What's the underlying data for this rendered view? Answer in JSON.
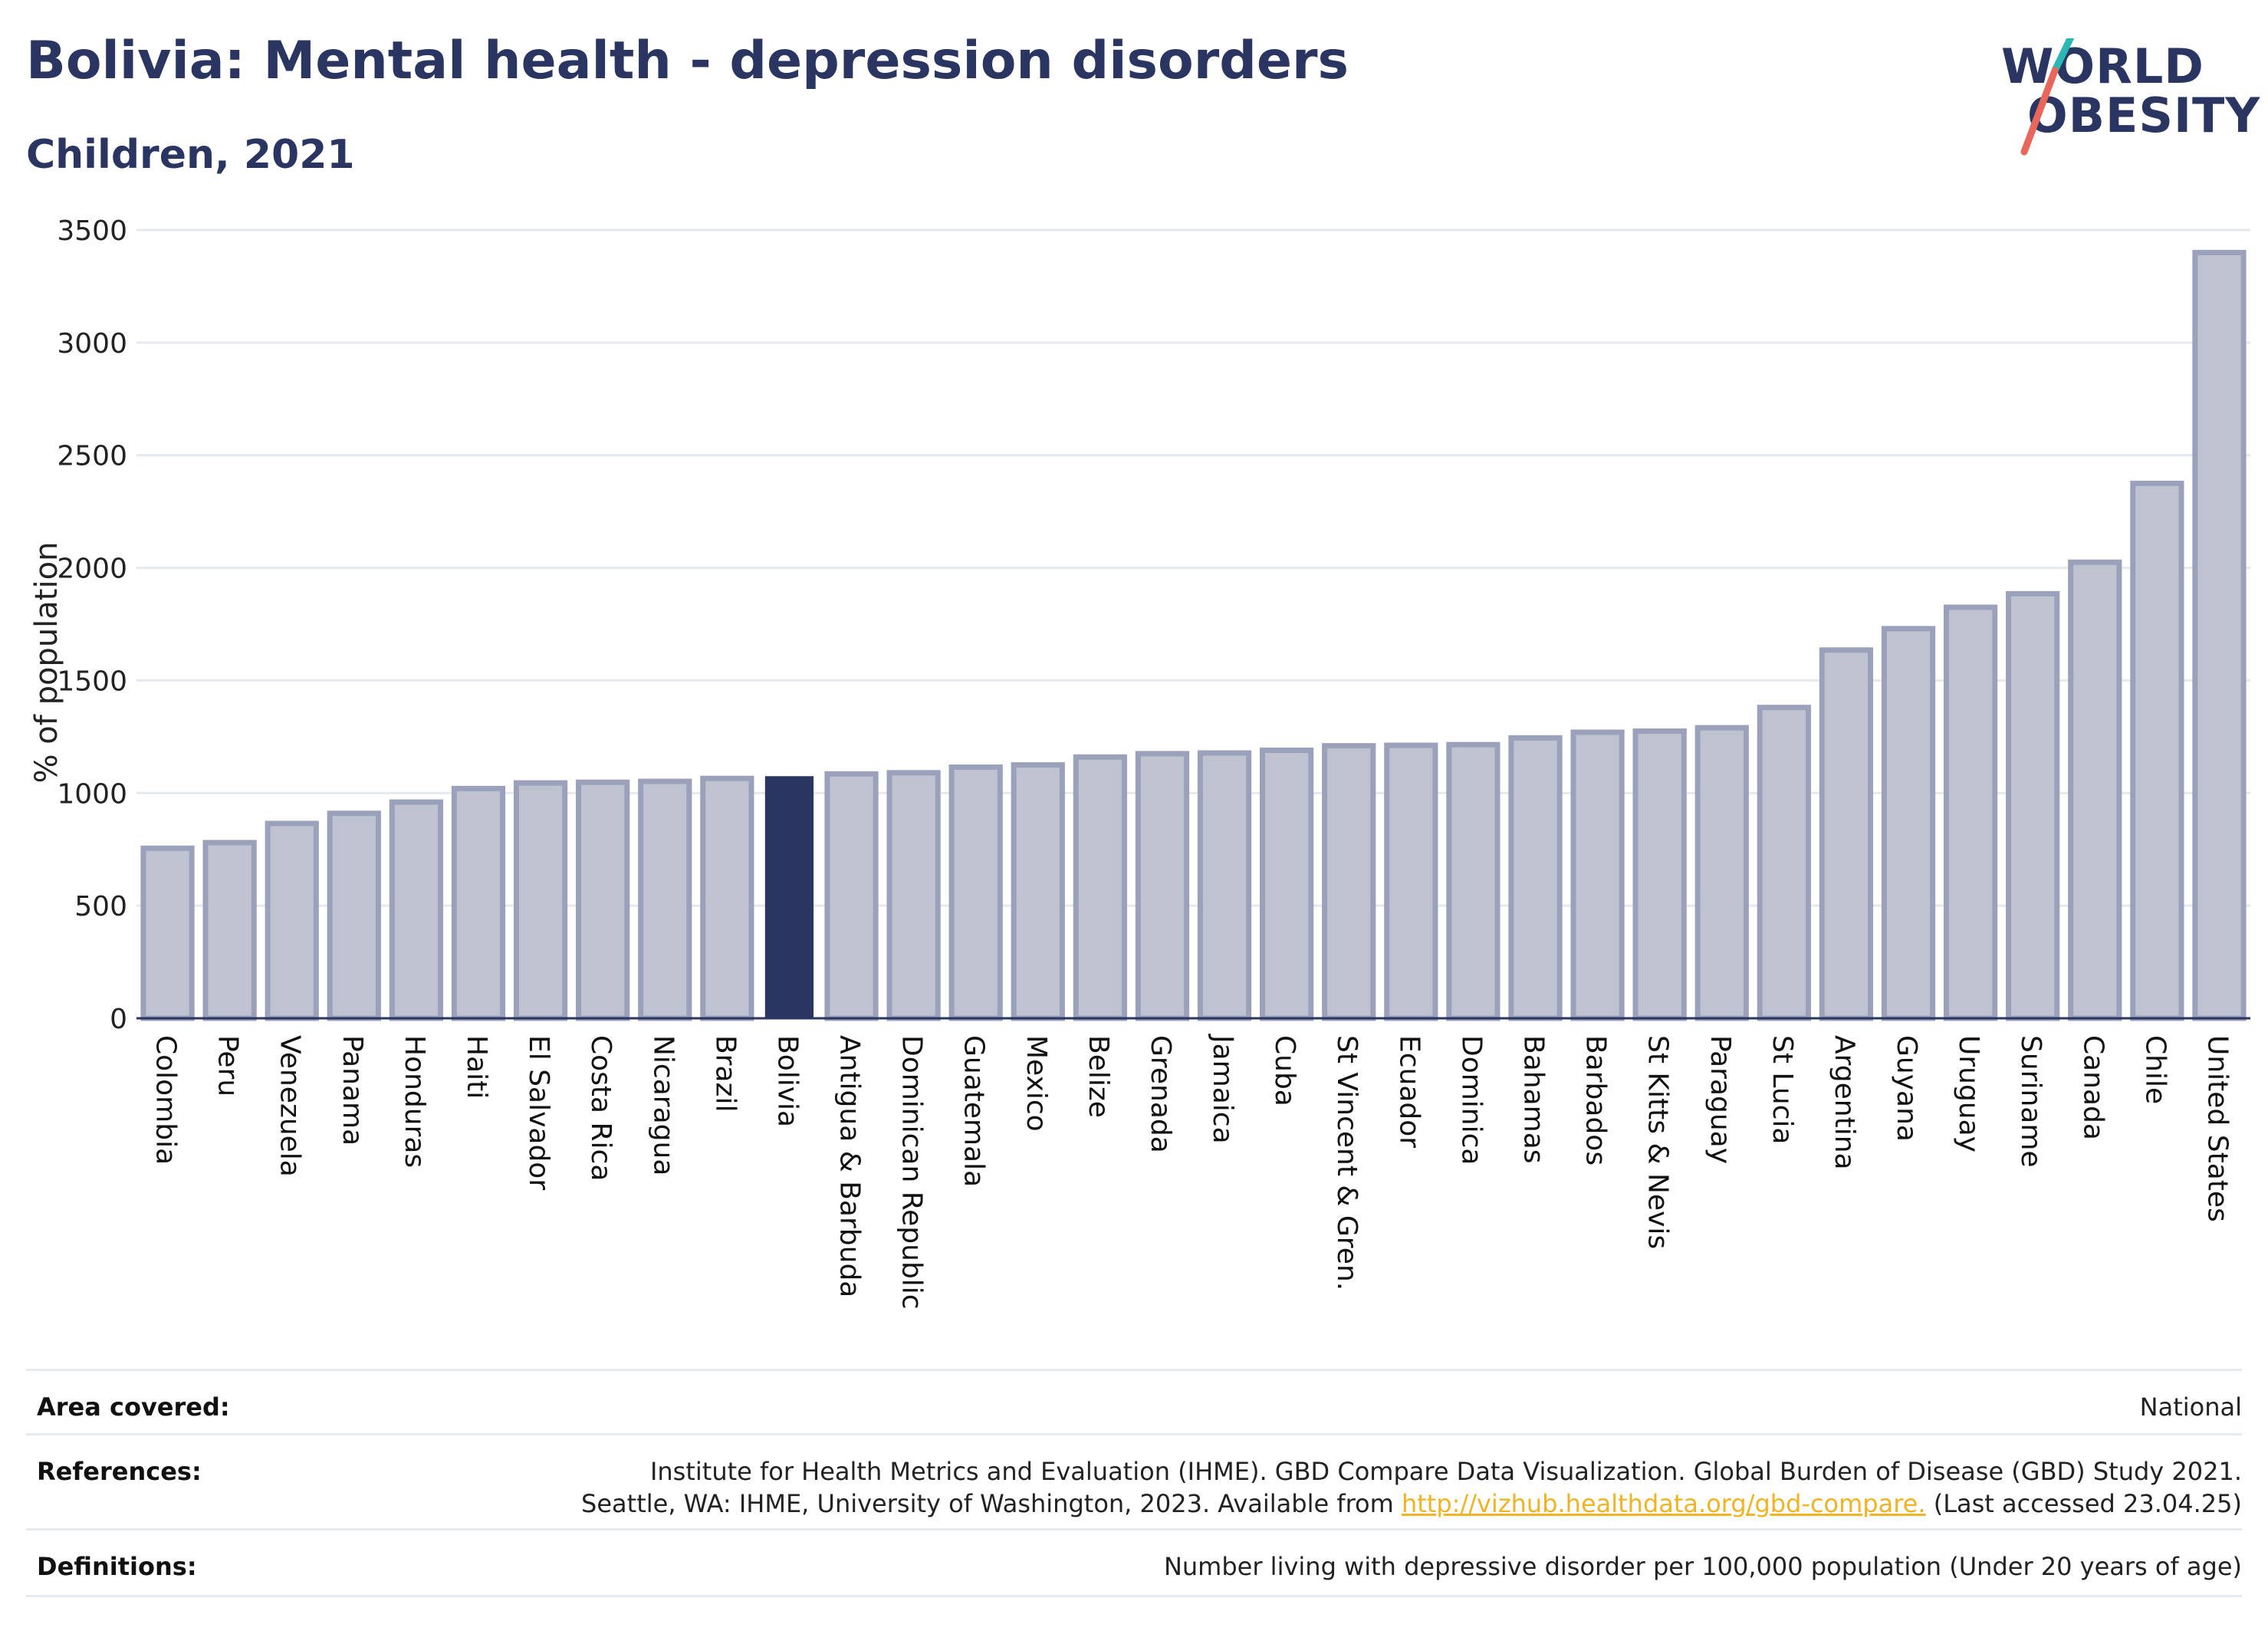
{
  "title": "Bolivia: Mental health - depression disorders",
  "subtitle": "Children, 2021",
  "logo": {
    "line1": "WORLD",
    "line2": "OBESITY"
  },
  "colors": {
    "highlight": "#2a3561",
    "bar_fill": "#bfc3d0",
    "bar_stroke": "#9ba1ba",
    "text": "#2a3561",
    "link": "#f0b323"
  },
  "chart_data": {
    "type": "bar",
    "ylabel": "% of population",
    "ylim": [
      0,
      3500
    ],
    "yticks": [
      0,
      500,
      1000,
      1500,
      2000,
      2500,
      3000,
      3500
    ],
    "grid": true,
    "highlight": "Bolivia",
    "categories": [
      "Colombia",
      "Peru",
      "Venezuela",
      "Panama",
      "Honduras",
      "Haiti",
      "El Salvador",
      "Costa Rica",
      "Nicaragua",
      "Brazil",
      "Bolivia",
      "Antigua & Barbuda",
      "Dominican Republic",
      "Guatemala",
      "Mexico",
      "Belize",
      "Grenada",
      "Jamaica",
      "Cuba",
      "St Vincent & Gren.",
      "Ecuador",
      "Dominica",
      "Bahamas",
      "Barbados",
      "St Kitts & Nevis",
      "Paraguay",
      "St Lucia",
      "Argentina",
      "Guyana",
      "Uruguay",
      "Suriname",
      "Canada",
      "Chile",
      "United States"
    ],
    "values": [
      755,
      780,
      865,
      910,
      960,
      1020,
      1045,
      1048,
      1052,
      1065,
      1075,
      1085,
      1090,
      1115,
      1125,
      1160,
      1175,
      1178,
      1190,
      1210,
      1212,
      1215,
      1245,
      1270,
      1275,
      1290,
      1380,
      1635,
      1730,
      1825,
      1885,
      2025,
      2375,
      3400
    ]
  },
  "footer": {
    "area_label": "Area covered:",
    "area_value": "National",
    "references_label": "References:",
    "references_line1": "Institute for Health Metrics and Evaluation (IHME). GBD Compare Data Visualization. Global Burden of Disease (GBD) Study 2021.",
    "references_line2_pre": "Seattle, WA: IHME, University of Washington, 2023. Available from ",
    "references_link": "http://vizhub.healthdata.org/gbd-compare.",
    "references_line2_post": " (Last accessed 23.04.25)",
    "definitions_label": "Definitions:",
    "definitions_value": "Number living with depressive disorder per 100,000 population (Under 20 years of age)"
  }
}
